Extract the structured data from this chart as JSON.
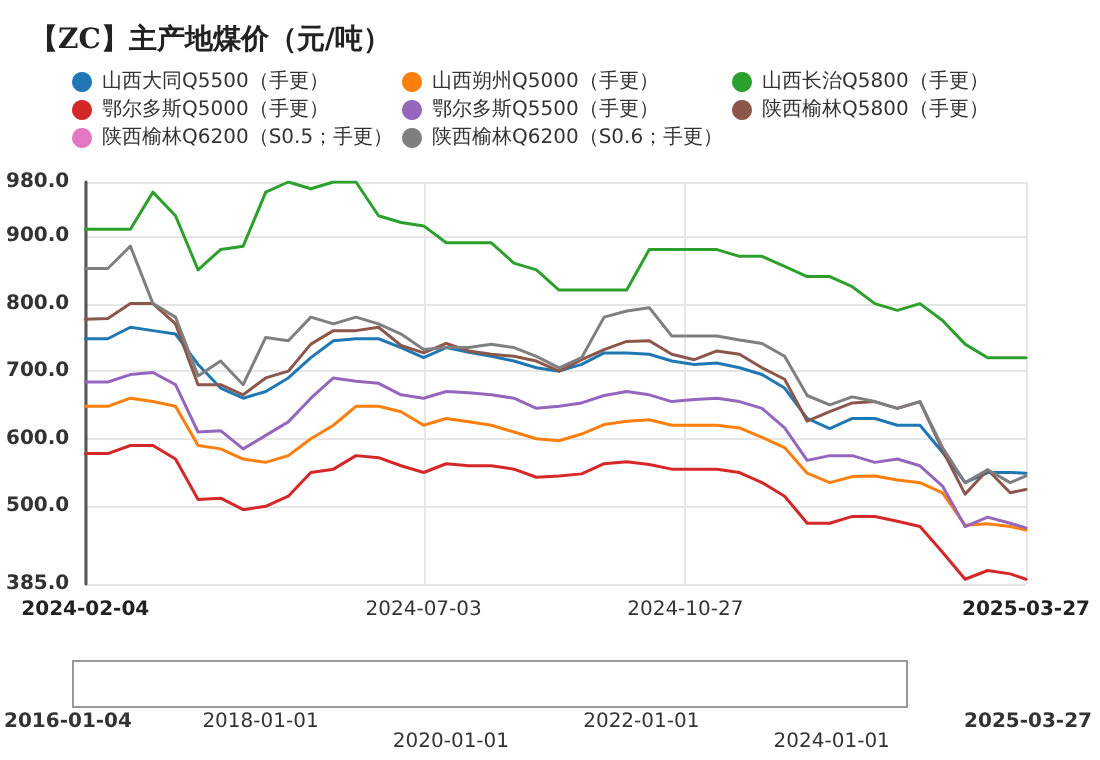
{
  "chart_data": {
    "type": "line",
    "title": "【ZC】主产地煤价（元/吨）",
    "x": [
      "2024-02-04",
      "2024-02-14",
      "2024-02-24",
      "2024-03-05",
      "2024-03-15",
      "2024-03-25",
      "2024-04-04",
      "2024-04-14",
      "2024-04-24",
      "2024-05-04",
      "2024-05-14",
      "2024-05-24",
      "2024-06-03",
      "2024-06-13",
      "2024-06-23",
      "2024-07-03",
      "2024-07-13",
      "2024-07-23",
      "2024-08-02",
      "2024-08-12",
      "2024-08-22",
      "2024-09-01",
      "2024-09-11",
      "2024-09-21",
      "2024-10-01",
      "2024-10-11",
      "2024-10-21",
      "2024-10-31",
      "2024-11-10",
      "2024-11-20",
      "2024-11-30",
      "2024-12-10",
      "2024-12-20",
      "2024-12-30",
      "2025-01-09",
      "2025-01-19",
      "2025-01-29",
      "2025-02-08",
      "2025-02-18",
      "2025-02-28",
      "2025-03-10",
      "2025-03-20",
      "2025-03-27"
    ],
    "series": [
      {
        "name": "山西大同Q5500（手更）",
        "color": "#1f77b4",
        "values": [
          748,
          748,
          765,
          760,
          755,
          710,
          675,
          660,
          670,
          690,
          720,
          745,
          748,
          748,
          735,
          720,
          735,
          728,
          722,
          715,
          705,
          700,
          710,
          727,
          727,
          725,
          715,
          710,
          712,
          705,
          695,
          675,
          630,
          615,
          630,
          630,
          620,
          620,
          580,
          535,
          550,
          550,
          549
        ]
      },
      {
        "name": "山西朔州Q5000（手更）",
        "color": "#ff7f0e",
        "values": [
          648,
          648,
          660,
          655,
          648,
          590,
          585,
          570,
          565,
          575,
          600,
          620,
          648,
          648,
          640,
          620,
          630,
          625,
          620,
          610,
          600,
          597,
          607,
          621,
          626,
          628,
          620,
          620,
          620,
          616,
          602,
          587,
          549,
          535,
          544,
          545,
          539,
          535,
          520,
          472,
          474,
          470,
          465
        ]
      },
      {
        "name": "山西长治Q5800（手更）",
        "color": "#2ca02c",
        "values": [
          910,
          910,
          910,
          965,
          930,
          850,
          880,
          885,
          965,
          980,
          970,
          980,
          980,
          930,
          920,
          915,
          890,
          890,
          890,
          860,
          850,
          820,
          820,
          820,
          820,
          880,
          880,
          880,
          880,
          870,
          870,
          855,
          840,
          840,
          825,
          800,
          790,
          800,
          775,
          740,
          720,
          720,
          720
        ]
      },
      {
        "name": "鄂尔多斯Q5000（手更）",
        "color": "#d62728",
        "values": [
          578,
          578,
          590,
          590,
          570,
          510,
          512,
          495,
          500,
          515,
          550,
          555,
          575,
          572,
          560,
          550,
          563,
          560,
          560,
          555,
          543,
          545,
          548,
          563,
          566,
          562,
          555,
          555,
          555,
          550,
          535,
          515,
          475,
          475,
          485,
          485,
          478,
          470,
          432,
          392,
          405,
          400,
          392
        ]
      },
      {
        "name": "鄂尔多斯Q5500（手更）",
        "color": "#9467bd",
        "values": [
          684,
          684,
          695,
          698,
          680,
          610,
          612,
          585,
          605,
          625,
          660,
          690,
          685,
          682,
          665,
          660,
          670,
          668,
          665,
          660,
          645,
          648,
          653,
          664,
          670,
          665,
          655,
          658,
          660,
          655,
          645,
          616,
          568,
          575,
          575,
          565,
          570,
          560,
          530,
          470,
          484,
          475,
          468
        ]
      },
      {
        "name": "陕西榆林Q5800（手更）",
        "color": "#8c564b",
        "values": [
          777,
          778,
          800,
          800,
          770,
          680,
          680,
          665,
          690,
          700,
          740,
          760,
          760,
          765,
          738,
          727,
          741,
          730,
          725,
          722,
          715,
          700,
          717,
          732,
          744,
          745,
          725,
          717,
          730,
          725,
          705,
          688,
          626,
          640,
          653,
          655,
          645,
          655,
          583,
          518,
          554,
          520,
          525
        ]
      },
      {
        "name": "陕西榆林Q6200（S0.5；手更）",
        "color": "#e377c2",
        "values": [
          null,
          null,
          null,
          null,
          null,
          null,
          null,
          null,
          null,
          null,
          null,
          null,
          null,
          null,
          null,
          null,
          null,
          null,
          null,
          null,
          null,
          null,
          null,
          null,
          null,
          null,
          null,
          null,
          null,
          null,
          null,
          null,
          null,
          null,
          null,
          null,
          null,
          null,
          null,
          null,
          null,
          null,
          null
        ]
      },
      {
        "name": "陕西榆林Q6200（S0.6；手更）",
        "color": "#7f7f7f",
        "values": [
          852,
          852,
          885,
          800,
          780,
          693,
          715,
          680,
          750,
          745,
          780,
          770,
          780,
          770,
          755,
          732,
          735,
          735,
          740,
          735,
          722,
          705,
          720,
          780,
          789,
          794,
          752,
          752,
          752,
          746,
          741,
          722,
          664,
          650,
          662,
          655,
          645,
          655,
          587,
          535,
          554,
          535,
          545
        ]
      }
    ],
    "xlim": [
      "2024-02-04",
      "2025-03-27"
    ],
    "xticks": [
      "2024-02-04",
      "2024-07-03",
      "2024-10-27",
      "2025-03-27"
    ],
    "ylim": [
      385,
      980
    ],
    "yticks": [
      {
        "value": 385,
        "label": "385.0"
      },
      {
        "value": 500,
        "label": "500.0"
      },
      {
        "value": 600,
        "label": "600.0"
      },
      {
        "value": 700,
        "label": "700.0"
      },
      {
        "value": 800,
        "label": "800.0"
      },
      {
        "value": 900,
        "label": "900.0"
      },
      {
        "value": 980,
        "label": "980.0"
      }
    ],
    "annotations": [
      "2016-01-04",
      "2018-01-01",
      "2020-01-01",
      "2022-01-01",
      "2024-01-01",
      "2025-03-27"
    ],
    "grid": true,
    "legend": "top",
    "marker": "none",
    "line_style": "solid"
  }
}
